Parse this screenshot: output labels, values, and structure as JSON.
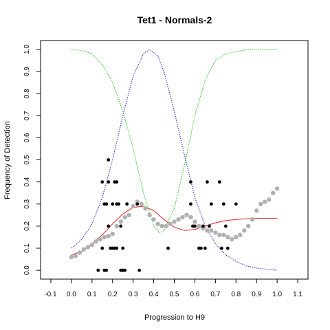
{
  "chart_data": {
    "type": "scatter",
    "title": "Tet1 - Normals-2",
    "xlabel": "Progression to H9",
    "ylabel": "Frequency of Detection",
    "xlim": [
      -0.15,
      1.15
    ],
    "ylim": [
      -0.04,
      1.04
    ],
    "x_ticks": [
      "-0.1",
      "0.0",
      "0.1",
      "0.2",
      "0.3",
      "0.4",
      "0.5",
      "0.6",
      "0.7",
      "0.8",
      "0.9",
      "1.0",
      "1.1"
    ],
    "y_ticks": [
      "0.0",
      "0.1",
      "0.2",
      "0.3",
      "0.4",
      "0.5",
      "0.6",
      "0.7",
      "0.8",
      "0.9",
      "1.0"
    ],
    "grid": false,
    "series": [
      {
        "style": "dotted-line",
        "color": "#2020cc",
        "x": [
          0.0,
          0.05,
          0.1,
          0.15,
          0.2,
          0.25,
          0.3,
          0.35,
          0.38,
          0.42,
          0.45,
          0.5,
          0.55,
          0.6,
          0.65,
          0.7,
          0.75,
          0.8,
          0.85,
          0.9,
          0.95,
          1.0
        ],
        "values": [
          0.1,
          0.14,
          0.21,
          0.33,
          0.5,
          0.7,
          0.88,
          0.98,
          1.0,
          0.97,
          0.9,
          0.72,
          0.52,
          0.33,
          0.2,
          0.12,
          0.07,
          0.04,
          0.02,
          0.01,
          0.005,
          0.0
        ]
      },
      {
        "style": "dotted-line",
        "color": "#20c020",
        "x": [
          0.0,
          0.05,
          0.1,
          0.15,
          0.2,
          0.25,
          0.3,
          0.35,
          0.4,
          0.43,
          0.45,
          0.5,
          0.55,
          0.6,
          0.65,
          0.7,
          0.75,
          0.8,
          0.85,
          0.9,
          0.95,
          1.0
        ],
        "values": [
          1.0,
          0.995,
          0.98,
          0.93,
          0.85,
          0.72,
          0.55,
          0.35,
          0.2,
          0.17,
          0.18,
          0.28,
          0.48,
          0.7,
          0.86,
          0.95,
          0.98,
          0.99,
          0.998,
          1.0,
          1.0,
          1.0
        ]
      },
      {
        "style": "line",
        "color": "#e02020",
        "x": [
          0.0,
          0.05,
          0.1,
          0.15,
          0.2,
          0.25,
          0.3,
          0.35,
          0.4,
          0.45,
          0.5,
          0.55,
          0.6,
          0.65,
          0.7,
          0.75,
          0.8,
          0.85,
          0.9,
          0.95,
          1.0
        ],
        "values": [
          0.07,
          0.085,
          0.12,
          0.16,
          0.21,
          0.255,
          0.285,
          0.29,
          0.27,
          0.23,
          0.195,
          0.18,
          0.185,
          0.2,
          0.215,
          0.225,
          0.23,
          0.233,
          0.235,
          0.235,
          0.235
        ]
      },
      {
        "style": "points",
        "color": "#b0b0b0",
        "x": [
          0.0,
          0.02,
          0.04,
          0.06,
          0.08,
          0.1,
          0.12,
          0.14,
          0.16,
          0.18,
          0.2,
          0.22,
          0.24,
          0.26,
          0.28,
          0.3,
          0.32,
          0.34,
          0.36,
          0.38,
          0.4,
          0.42,
          0.44,
          0.46,
          0.48,
          0.5,
          0.52,
          0.54,
          0.56,
          0.58,
          0.6,
          0.62,
          0.64,
          0.66,
          0.68,
          0.7,
          0.72,
          0.74,
          0.76,
          0.78,
          0.8,
          0.82,
          0.84,
          0.86,
          0.88,
          0.9,
          0.92,
          0.94,
          0.96,
          0.98,
          1.0
        ],
        "values": [
          0.06,
          0.065,
          0.08,
          0.095,
          0.105,
          0.115,
          0.13,
          0.14,
          0.15,
          0.155,
          0.165,
          0.2,
          0.22,
          0.24,
          0.25,
          0.29,
          0.31,
          0.3,
          0.28,
          0.25,
          0.23,
          0.21,
          0.2,
          0.2,
          0.21,
          0.22,
          0.23,
          0.24,
          0.25,
          0.24,
          0.22,
          0.2,
          0.19,
          0.18,
          0.18,
          0.17,
          0.16,
          0.16,
          0.15,
          0.14,
          0.15,
          0.16,
          0.18,
          0.2,
          0.23,
          0.27,
          0.3,
          0.31,
          0.32,
          0.35,
          0.37
        ]
      },
      {
        "style": "points",
        "color": "#000000",
        "x": [
          0.13,
          0.15,
          0.15,
          0.16,
          0.16,
          0.17,
          0.17,
          0.18,
          0.18,
          0.18,
          0.19,
          0.2,
          0.2,
          0.21,
          0.21,
          0.22,
          0.22,
          0.22,
          0.23,
          0.24,
          0.24,
          0.25,
          0.25,
          0.26,
          0.27,
          0.32,
          0.33,
          0.47,
          0.58,
          0.58,
          0.59,
          0.6,
          0.62,
          0.63,
          0.64,
          0.65,
          0.66,
          0.67,
          0.68,
          0.72,
          0.73,
          0.74,
          0.75,
          0.76,
          0.8
        ],
        "values": [
          0.0,
          0.4,
          0.1,
          0.3,
          0.0,
          0.3,
          0.0,
          0.5,
          0.4,
          0.2,
          0.1,
          0.3,
          0.1,
          0.4,
          0.1,
          0.4,
          0.3,
          0.1,
          0.3,
          0.2,
          0.0,
          0.1,
          0.0,
          0.0,
          0.3,
          0.3,
          0.0,
          0.1,
          0.4,
          0.3,
          0.2,
          0.2,
          0.1,
          0.1,
          0.2,
          0.1,
          0.4,
          0.2,
          0.3,
          0.4,
          0.1,
          0.3,
          0.2,
          0.1,
          0.3
        ]
      }
    ]
  }
}
